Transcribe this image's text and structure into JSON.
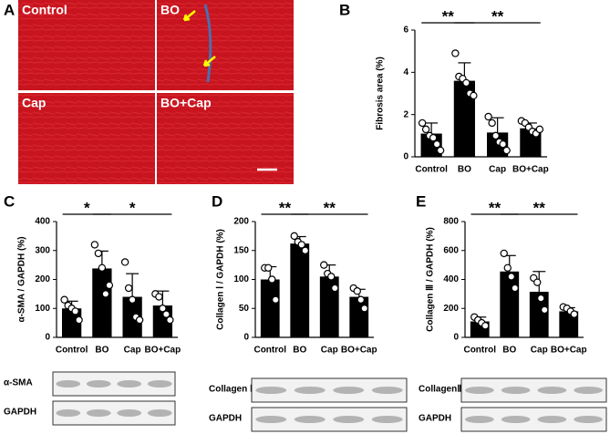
{
  "figure": {
    "panel": "A",
    "images": [
      "Control",
      "BO",
      "Cap",
      "BO+Cap"
    ]
  },
  "chart_data": [
    {
      "type": "bar",
      "panel": "B",
      "y_label": "Fibrosis area (%)",
      "categories": [
        "Control",
        "BO",
        "Cap",
        "BO+Cap"
      ],
      "values": [
        1.1,
        3.6,
        1.15,
        1.35
      ],
      "errors": [
        0.5,
        0.85,
        0.7,
        0.25
      ],
      "points": [
        [
          1.6,
          1.3,
          1.0,
          0.9,
          0.6,
          0.3
        ],
        [
          4.9,
          3.8,
          3.7,
          3.5,
          3.0,
          2.9
        ],
        [
          1.9,
          1.6,
          1.0,
          0.7,
          0.6,
          0.3
        ],
        [
          1.7,
          1.6,
          1.4,
          1.2,
          1.1,
          1.3
        ]
      ],
      "ylim": [
        0,
        6
      ],
      "yticks": [
        0,
        2,
        4,
        6
      ],
      "brackets": [
        {
          "label": "**",
          "span": [
            0,
            1
          ]
        },
        {
          "label": "**",
          "span": [
            1,
            3
          ]
        }
      ],
      "blots": []
    },
    {
      "type": "bar",
      "panel": "C",
      "y_label": "α-SMA / GAPDH  (%)",
      "categories": [
        "Control",
        "BO",
        "Cap",
        "BO+Cap"
      ],
      "values": [
        100,
        238,
        140,
        110
      ],
      "errors": [
        25,
        60,
        80,
        50
      ],
      "points": [
        [
          130,
          110,
          100,
          90,
          60
        ],
        [
          320,
          290,
          240,
          150,
          180
        ],
        [
          260,
          170,
          130,
          70,
          60
        ],
        [
          150,
          140,
          100,
          80,
          60
        ]
      ],
      "ylim": [
        0,
        400
      ],
      "yticks": [
        0,
        100,
        200,
        300,
        400
      ],
      "brackets": [
        {
          "label": "*",
          "span": [
            0,
            1
          ]
        },
        {
          "label": "*",
          "span": [
            1,
            3
          ]
        }
      ],
      "blots": [
        "α-SMA",
        "GAPDH"
      ]
    },
    {
      "type": "bar",
      "panel": "D",
      "y_label": "Collagen Ⅰ / GAPDH  (%)",
      "categories": [
        "Control",
        "BO",
        "Cap",
        "BO+Cap"
      ],
      "values": [
        100,
        162,
        105,
        70
      ],
      "errors": [
        22,
        12,
        20,
        13
      ],
      "points": [
        [
          120,
          120,
          100,
          65
        ],
        [
          175,
          165,
          160,
          150
        ],
        [
          125,
          110,
          105,
          85
        ],
        [
          85,
          80,
          65,
          50
        ]
      ],
      "ylim": [
        0,
        200
      ],
      "yticks": [
        0,
        50,
        100,
        150,
        200
      ],
      "brackets": [
        {
          "label": "**",
          "span": [
            0,
            1
          ]
        },
        {
          "label": "**",
          "span": [
            1,
            3
          ]
        }
      ],
      "blots": [
        "Collagen Ⅰ",
        "GAPDH"
      ]
    },
    {
      "type": "bar",
      "panel": "E",
      "y_label": "Collagen Ⅲ / GAPDH  (%)",
      "categories": [
        "Control",
        "BO",
        "Cap",
        "BO+Cap"
      ],
      "values": [
        110,
        455,
        315,
        180
      ],
      "errors": [
        30,
        110,
        140,
        25
      ],
      "points": [
        [
          140,
          120,
          100,
          80
        ],
        [
          580,
          480,
          420,
          340
        ],
        [
          410,
          380,
          270,
          190
        ],
        [
          210,
          200,
          180,
          160
        ]
      ],
      "ylim": [
        0,
        800
      ],
      "yticks": [
        0,
        200,
        400,
        600,
        800
      ],
      "brackets": [
        {
          "label": "**",
          "span": [
            0,
            1
          ]
        },
        {
          "label": "**",
          "span": [
            1,
            3
          ]
        }
      ],
      "blots": [
        "CollagenⅢ",
        "GAPDH"
      ]
    }
  ]
}
